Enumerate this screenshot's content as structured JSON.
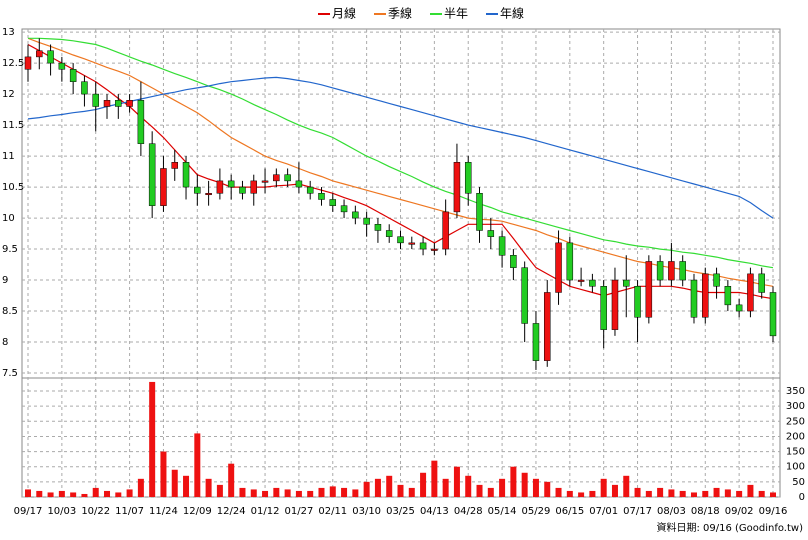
{
  "chart_data": {
    "type": "candlestick",
    "categories": [
      "09/17",
      null,
      null,
      "10/03",
      null,
      null,
      "10/22",
      null,
      null,
      "11/07",
      null,
      null,
      "11/24",
      null,
      null,
      "12/09",
      null,
      null,
      "12/24",
      null,
      null,
      "01/12",
      null,
      null,
      "01/27",
      null,
      null,
      "02/11",
      null,
      null,
      "03/10",
      null,
      null,
      "03/25",
      null,
      null,
      "04/13",
      null,
      null,
      "04/28",
      null,
      null,
      "05/14",
      null,
      null,
      "05/29",
      null,
      null,
      "06/15",
      null,
      null,
      "07/01",
      null,
      null,
      "07/17",
      null,
      null,
      "08/03",
      null,
      null,
      "08/18",
      null,
      null,
      "09/02",
      null,
      null,
      "09/16"
    ],
    "open": [
      12.4,
      12.6,
      12.7,
      12.5,
      12.4,
      12.2,
      12.0,
      11.8,
      11.9,
      11.8,
      11.9,
      11.2,
      10.2,
      10.8,
      10.9,
      10.5,
      10.4,
      10.4,
      10.6,
      10.5,
      10.4,
      10.6,
      10.6,
      10.7,
      10.6,
      10.5,
      10.4,
      10.3,
      10.2,
      10.1,
      10.0,
      9.9,
      9.8,
      9.7,
      9.6,
      9.6,
      9.5,
      9.5,
      10.1,
      10.9,
      10.4,
      9.8,
      9.7,
      9.4,
      9.2,
      8.3,
      7.7,
      8.8,
      9.6,
      9.0,
      9.0,
      8.9,
      8.2,
      9.0,
      8.9,
      8.4,
      9.3,
      9.0,
      9.3,
      9.0,
      8.4,
      9.1,
      8.9,
      8.6,
      8.5,
      9.1,
      8.8
    ],
    "high": [
      12.8,
      12.9,
      12.8,
      12.6,
      12.5,
      12.3,
      12.2,
      12.0,
      12.0,
      12.0,
      12.2,
      11.4,
      11.0,
      11.1,
      11.0,
      10.7,
      10.6,
      10.8,
      10.7,
      10.6,
      10.7,
      10.8,
      10.8,
      10.8,
      10.9,
      10.6,
      10.5,
      10.4,
      10.3,
      10.2,
      10.1,
      10.0,
      9.9,
      9.8,
      9.7,
      9.7,
      9.6,
      10.3,
      11.2,
      11.0,
      10.5,
      10.0,
      9.8,
      9.5,
      9.3,
      8.5,
      9.0,
      9.8,
      9.7,
      9.2,
      9.1,
      9.0,
      9.2,
      9.4,
      9.0,
      9.4,
      9.4,
      9.6,
      9.4,
      9.1,
      9.2,
      9.2,
      9.0,
      8.7,
      9.2,
      9.2,
      8.9
    ],
    "low": [
      12.2,
      12.4,
      12.3,
      12.2,
      12.0,
      11.8,
      11.4,
      11.6,
      11.6,
      11.7,
      11.0,
      10.0,
      10.1,
      10.6,
      10.3,
      10.2,
      10.2,
      10.3,
      10.3,
      10.3,
      10.2,
      10.4,
      10.5,
      10.5,
      10.4,
      10.3,
      10.2,
      10.1,
      10.0,
      9.9,
      9.7,
      9.6,
      9.6,
      9.5,
      9.5,
      9.4,
      9.4,
      9.4,
      10.0,
      10.2,
      9.6,
      9.5,
      9.2,
      9.0,
      8.0,
      7.55,
      7.6,
      8.6,
      8.9,
      8.9,
      8.8,
      7.9,
      8.1,
      8.4,
      8.0,
      8.3,
      8.9,
      8.9,
      8.9,
      8.3,
      8.3,
      8.7,
      8.5,
      8.4,
      8.4,
      8.7,
      8.0
    ],
    "close": [
      12.6,
      12.7,
      12.5,
      12.4,
      12.2,
      12.0,
      11.8,
      11.9,
      11.8,
      11.9,
      11.2,
      10.2,
      10.8,
      10.9,
      10.5,
      10.4,
      10.4,
      10.6,
      10.5,
      10.4,
      10.6,
      10.6,
      10.7,
      10.6,
      10.5,
      10.4,
      10.3,
      10.2,
      10.1,
      10.0,
      9.9,
      9.8,
      9.7,
      9.6,
      9.6,
      9.5,
      9.5,
      10.1,
      10.9,
      10.4,
      9.8,
      9.7,
      9.4,
      9.2,
      8.3,
      7.7,
      8.8,
      9.6,
      9.0,
      9.0,
      8.9,
      8.2,
      9.0,
      8.9,
      8.4,
      9.3,
      9.0,
      9.3,
      9.0,
      8.4,
      9.1,
      8.9,
      8.6,
      8.5,
      9.1,
      8.8,
      8.1
    ],
    "up_color": "#ee1111",
    "down_color": "#22cc22",
    "ylim": [
      7.42,
      13.05
    ],
    "yticks": [
      13,
      12.5,
      12,
      11.5,
      11,
      10.5,
      10,
      9.5,
      9,
      8.5,
      8,
      7.5
    ],
    "grid": true,
    "lines": [
      {
        "name": "月線",
        "color": "#dd0000",
        "values": [
          12.8,
          12.7,
          12.6,
          12.5,
          12.4,
          12.3,
          12.2,
          12.07,
          11.93,
          11.8,
          11.63,
          11.47,
          11.3,
          11.1,
          10.9,
          10.7,
          10.63,
          10.57,
          10.5,
          10.5,
          10.5,
          10.5,
          10.52,
          10.53,
          10.55,
          10.5,
          10.45,
          10.4,
          10.33,
          10.27,
          10.2,
          10.1,
          10.0,
          9.9,
          9.8,
          9.7,
          9.6,
          9.7,
          9.8,
          9.9,
          9.9,
          9.9,
          9.9,
          9.67,
          9.43,
          9.2,
          9.1,
          9.0,
          8.9,
          8.85,
          8.8,
          8.75,
          8.8,
          8.85,
          8.9,
          8.9,
          8.9,
          8.9,
          8.87,
          8.83,
          8.8,
          8.8,
          8.8,
          8.8,
          8.77,
          8.73,
          8.7
        ]
      },
      {
        "name": "季線",
        "color": "#ee7722",
        "values": [
          12.9,
          12.83,
          12.77,
          12.7,
          12.63,
          12.57,
          12.5,
          12.43,
          12.37,
          12.3,
          12.2,
          12.1,
          12.0,
          11.9,
          11.8,
          11.7,
          11.57,
          11.43,
          11.3,
          11.2,
          11.1,
          11.0,
          10.93,
          10.87,
          10.8,
          10.73,
          10.67,
          10.6,
          10.55,
          10.5,
          10.45,
          10.4,
          10.35,
          10.3,
          10.25,
          10.2,
          10.15,
          10.1,
          10.05,
          10.0,
          9.98,
          9.97,
          9.95,
          9.9,
          9.85,
          9.8,
          9.73,
          9.67,
          9.6,
          9.55,
          9.5,
          9.45,
          9.4,
          9.35,
          9.3,
          9.27,
          9.23,
          9.2,
          9.17,
          9.13,
          9.1,
          9.07,
          9.03,
          9.0,
          8.97,
          8.93,
          8.9
        ]
      },
      {
        "name": "半年",
        "color": "#33dd33",
        "values": [
          12.9,
          12.9,
          12.89,
          12.88,
          12.86,
          12.83,
          12.8,
          12.74,
          12.67,
          12.6,
          12.53,
          12.47,
          12.4,
          12.33,
          12.27,
          12.2,
          12.13,
          12.07,
          12.0,
          11.92,
          11.83,
          11.75,
          11.67,
          11.58,
          11.5,
          11.43,
          11.37,
          11.3,
          11.2,
          11.1,
          11.0,
          10.92,
          10.83,
          10.75,
          10.67,
          10.58,
          10.5,
          10.43,
          10.37,
          10.3,
          10.23,
          10.17,
          10.1,
          10.05,
          10.0,
          9.95,
          9.9,
          9.85,
          9.8,
          9.75,
          9.7,
          9.65,
          9.62,
          9.58,
          9.55,
          9.53,
          9.5,
          9.48,
          9.45,
          9.43,
          9.4,
          9.37,
          9.33,
          9.3,
          9.27,
          9.23,
          9.2
        ]
      },
      {
        "name": "年線",
        "color": "#2266cc",
        "values": [
          11.6,
          11.62,
          11.65,
          11.67,
          11.7,
          11.72,
          11.75,
          11.8,
          11.84,
          11.88,
          11.92,
          11.96,
          12.0,
          12.03,
          12.07,
          12.1,
          12.13,
          12.17,
          12.2,
          12.22,
          12.24,
          12.26,
          12.27,
          12.25,
          12.22,
          12.19,
          12.15,
          12.1,
          12.05,
          12.0,
          11.95,
          11.9,
          11.85,
          11.8,
          11.75,
          11.7,
          11.65,
          11.6,
          11.55,
          11.5,
          11.46,
          11.42,
          11.38,
          11.34,
          11.3,
          11.25,
          11.2,
          11.15,
          11.1,
          11.05,
          11.0,
          10.95,
          10.9,
          10.85,
          10.8,
          10.75,
          10.7,
          10.65,
          10.6,
          10.55,
          10.5,
          10.45,
          10.4,
          10.35,
          10.25,
          10.12,
          10.0
        ]
      }
    ],
    "volume": {
      "color": "#ee1111",
      "values": [
        25,
        20,
        15,
        20,
        15,
        10,
        30,
        20,
        15,
        25,
        60,
        380,
        150,
        90,
        70,
        210,
        60,
        40,
        110,
        30,
        25,
        20,
        30,
        25,
        20,
        20,
        30,
        35,
        30,
        25,
        50,
        60,
        70,
        40,
        30,
        80,
        120,
        60,
        100,
        70,
        40,
        30,
        60,
        100,
        80,
        60,
        50,
        30,
        20,
        15,
        20,
        60,
        40,
        70,
        30,
        20,
        30,
        25,
        20,
        15,
        20,
        30,
        25,
        20,
        40,
        20,
        15
      ],
      "ylim": [
        0,
        393
      ],
      "yticks": [
        0,
        50,
        100,
        150,
        200,
        250,
        300,
        350
      ]
    },
    "footer": "資料日期: 09/16  (Goodinfo.tw)"
  }
}
